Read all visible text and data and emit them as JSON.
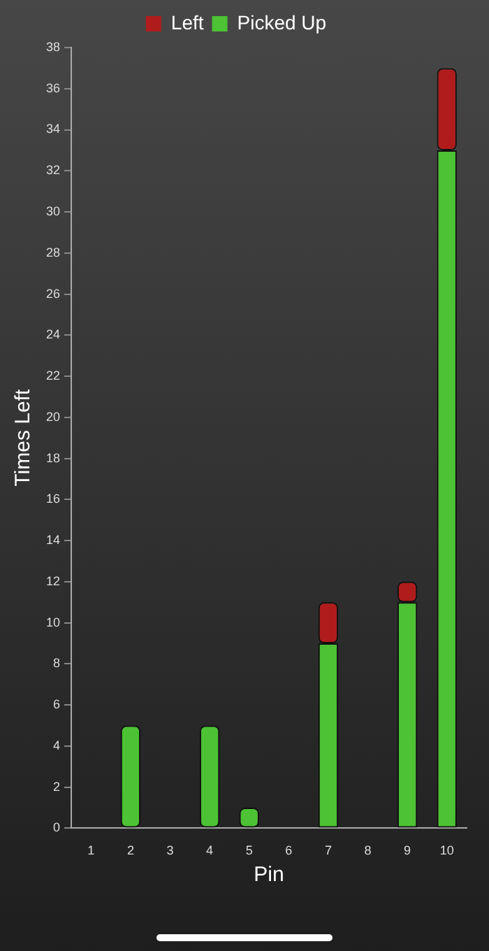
{
  "chart_data": {
    "type": "bar",
    "stacked": true,
    "xlabel": "Pin",
    "ylabel": "Times Left",
    "categories": [
      "1",
      "2",
      "3",
      "4",
      "5",
      "6",
      "7",
      "8",
      "9",
      "10"
    ],
    "series": [
      {
        "name": "Picked Up",
        "color": "#4cc234",
        "values": [
          0,
          5,
          0,
          5,
          1,
          0,
          9,
          0,
          11,
          33
        ]
      },
      {
        "name": "Left",
        "color": "#b01c1c",
        "values": [
          0,
          0,
          0,
          0,
          0,
          0,
          2,
          0,
          1,
          4
        ]
      }
    ],
    "ylim": [
      0,
      38
    ],
    "yticks": [
      0,
      2,
      4,
      6,
      8,
      10,
      12,
      14,
      16,
      18,
      20,
      22,
      24,
      26,
      28,
      30,
      32,
      34,
      36,
      38
    ],
    "grid": false,
    "legend": "top"
  }
}
